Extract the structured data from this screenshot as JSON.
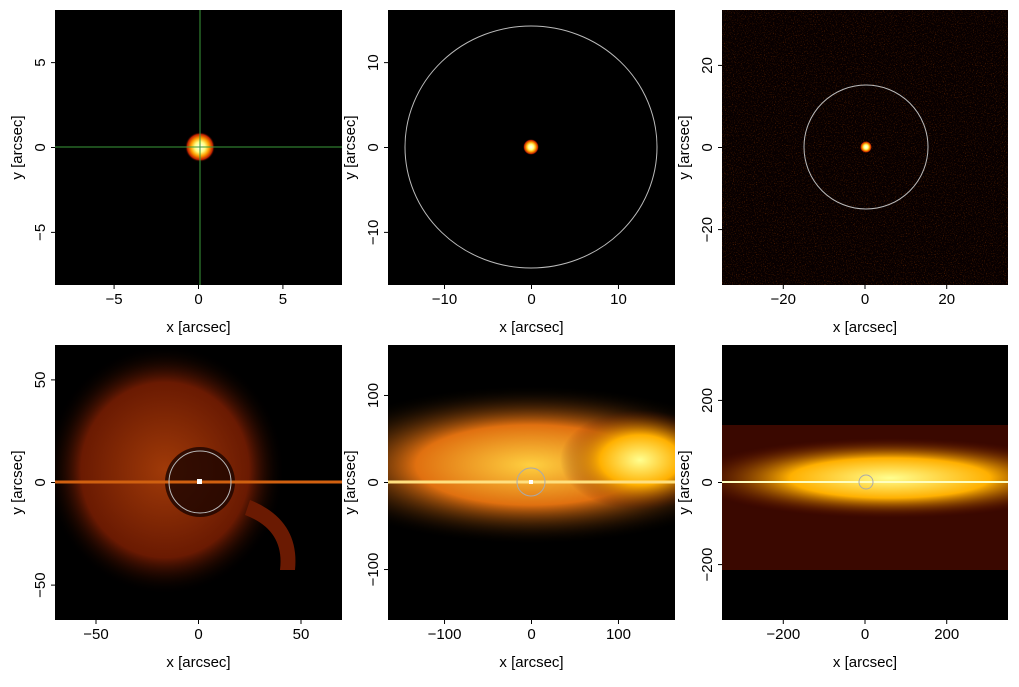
{
  "chart_data": [
    {
      "type": "image",
      "xlabel": "x [arcsec]",
      "ylabel": "y [arcsec]",
      "xlim": [
        -8.5,
        8.5
      ],
      "ylim": [
        -8.1,
        8.1
      ],
      "xticks": [
        {
          "value": -5,
          "label": "−5"
        },
        0,
        5
      ],
      "yticks": [
        {
          "value": -5,
          "label": "−5"
        },
        0,
        5
      ]
    },
    {
      "type": "image",
      "xlabel": "x [arcsec]",
      "ylabel": "y [arcsec]",
      "xlim": [
        -16.5,
        16.5
      ],
      "ylim": [
        -16.2,
        16.2
      ],
      "xticks": [
        {
          "value": -10,
          "label": "−10"
        },
        0,
        10
      ],
      "yticks": [
        {
          "value": -10,
          "label": "−10"
        },
        0,
        10
      ]
    },
    {
      "type": "image",
      "xlabel": "x [arcsec]",
      "ylabel": "y [arcsec]",
      "xlim": [
        -35,
        35
      ],
      "ylim": [
        -33.5,
        33.5
      ],
      "xticks": [
        {
          "value": -20,
          "label": "−20"
        },
        0,
        20
      ],
      "yticks": [
        {
          "value": -20,
          "label": "−20"
        },
        0,
        20
      ]
    },
    {
      "type": "image",
      "xlabel": "x [arcsec]",
      "ylabel": "y [arcsec]",
      "xlim": [
        -70,
        70
      ],
      "ylim": [
        -67,
        67
      ],
      "xticks": [
        {
          "value": -50,
          "label": "−50"
        },
        0,
        50
      ],
      "yticks": [
        {
          "value": -50,
          "label": "−50"
        },
        0,
        50
      ]
    },
    {
      "type": "image",
      "xlabel": "x [arcsec]",
      "ylabel": "y [arcsec]",
      "xlim": [
        -165,
        165
      ],
      "ylim": [
        -158,
        158
      ],
      "xticks": [
        {
          "value": -100,
          "label": "−100"
        },
        0,
        100
      ],
      "yticks": [
        {
          "value": -100,
          "label": "−100"
        },
        0,
        100
      ]
    },
    {
      "type": "image",
      "xlabel": "x [arcsec]",
      "ylabel": "y [arcsec]",
      "xlim": [
        -350,
        350
      ],
      "ylim": [
        -335,
        335
      ],
      "xticks": [
        {
          "value": -200,
          "label": "−200"
        },
        0,
        200
      ],
      "yticks": [
        {
          "value": -200,
          "label": "−200"
        },
        0,
        200
      ]
    }
  ]
}
